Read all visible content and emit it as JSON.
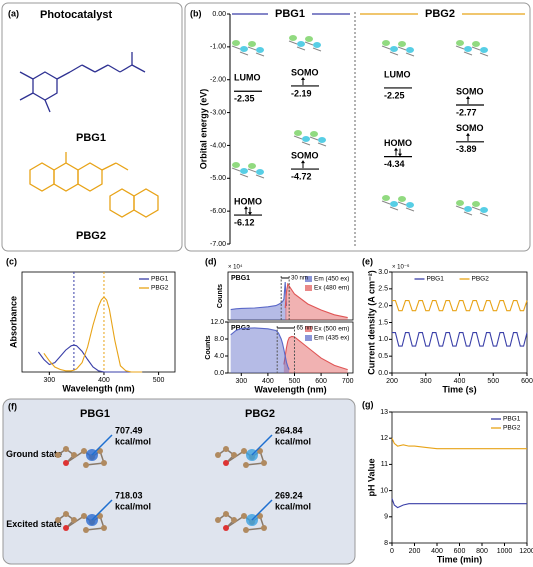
{
  "panel_a": {
    "panel": "(a)",
    "title": "Photocatalyst",
    "compounds": [
      "PBG1",
      "PBG2"
    ]
  },
  "panel_f": {
    "panel": "(f)",
    "columns": [
      "PBG1",
      "PBG2"
    ],
    "rows": [
      {
        "label": "Ground state",
        "energies": [
          {
            "value": "707.49",
            "unit": "kcal/mol"
          },
          {
            "value": "264.84",
            "unit": "kcal/mol"
          }
        ]
      },
      {
        "label": "Excited state",
        "energies": [
          {
            "value": "718.03",
            "unit": "kcal/mol"
          },
          {
            "value": "269.24",
            "unit": "kcal/mol"
          }
        ]
      }
    ]
  },
  "chart_data": [
    {
      "type": "energy_levels",
      "panel": "(b)",
      "ylabel": "Orbital energy (eV)",
      "ylim": [
        -7,
        0
      ],
      "yticks": [
        {
          "value": 0,
          "label": "0.00"
        },
        {
          "value": -1,
          "label": "-1.00"
        },
        {
          "value": -2,
          "label": "-2.00"
        },
        {
          "value": -3,
          "label": "-3.00"
        },
        {
          "value": -4,
          "label": "-4.00"
        },
        {
          "value": -5,
          "label": "-5.00"
        },
        {
          "value": -6,
          "label": "-6.00"
        },
        {
          "value": -7,
          "label": "-7.00"
        }
      ],
      "series": [
        {
          "name": "PBG1",
          "color": "#3a3fa8",
          "labels": [
            "LUMO",
            "SOMO",
            "SOMO",
            "HOMO"
          ],
          "values": [
            -2.35,
            -2.19,
            -4.72,
            -6.12
          ]
        },
        {
          "name": "PBG2",
          "color": "#e8a317",
          "labels": [
            "LUMO",
            "SOMO",
            "HOMO",
            "SOMO"
          ],
          "values": [
            -2.25,
            -2.77,
            -4.34,
            -3.89
          ]
        }
      ]
    },
    {
      "type": "line",
      "panel": "(c)",
      "xlabel": "Wavelength (nm)",
      "ylabel": "Absorbance",
      "legend": "upper right",
      "x": [
        270,
        280,
        290,
        300,
        310,
        320,
        330,
        340,
        345,
        350,
        360,
        370,
        380,
        390,
        395,
        400,
        405,
        410,
        420,
        430,
        440,
        450,
        470,
        500,
        530
      ],
      "xlim": [
        250,
        530
      ],
      "xticks": [
        300,
        400,
        500
      ],
      "ylim": [
        0,
        1.6
      ],
      "peak_lines": [
        345,
        400
      ],
      "series": [
        {
          "name": "PBG1",
          "color": "#3a3fa8",
          "values": [
            null,
            0.32,
            0.2,
            0.12,
            0.15,
            0.25,
            0.35,
            0.42,
            0.43,
            0.42,
            0.33,
            0.2,
            0.08,
            0.02,
            0.01,
            0,
            0,
            0,
            0,
            0,
            0,
            0,
            0,
            null,
            null
          ]
        },
        {
          "name": "PBG2",
          "color": "#e8a317",
          "values": [
            null,
            null,
            0.3,
            0.18,
            0.08,
            0.04,
            0.02,
            0.02,
            0.03,
            0.05,
            0.15,
            0.4,
            0.75,
            1.05,
            1.15,
            1.2,
            1.15,
            1.0,
            0.5,
            0.1,
            0.02,
            0,
            0,
            null,
            null
          ]
        }
      ]
    },
    {
      "type": "area",
      "panel": "(d)",
      "label": "PBG1",
      "ylabel": "Counts",
      "y_multiplier": "× 10⁴",
      "legend": "upper right",
      "annotation": "30 nm",
      "x": [
        260,
        280,
        300,
        350,
        400,
        430,
        440,
        450,
        455,
        460,
        465,
        470,
        475,
        480,
        490,
        500,
        550,
        600,
        650,
        700
      ],
      "xlim": [
        250,
        720
      ],
      "ylim": [
        0,
        12
      ],
      "markers": [
        450,
        480
      ],
      "series": [
        {
          "name": "Em (450 ex)",
          "color": "#5a68c8",
          "values": [
            2.6,
            2.8,
            2.9,
            3.0,
            3.3,
            3.6,
            3.9,
            4.3,
            4.6,
            5.2,
            9.5,
            3.5,
            null,
            null,
            null,
            null,
            null,
            null,
            null,
            null
          ]
        },
        {
          "name": "Ex (480 em)",
          "color": "#e05555",
          "values": [
            null,
            null,
            null,
            null,
            null,
            null,
            null,
            null,
            null,
            null,
            3,
            7,
            9,
            8.5,
            7.5,
            6.5,
            4,
            2.5,
            1.3,
            0.6
          ]
        }
      ]
    },
    {
      "type": "area",
      "label": "PBG2",
      "xlabel": "Wavelength (nm)",
      "ylabel": "Counts",
      "legend": "upper right",
      "annotation": "65 nm",
      "x": [
        260,
        280,
        300,
        350,
        400,
        430,
        440,
        450,
        455,
        460,
        465,
        470,
        475,
        480,
        490,
        500,
        550,
        600,
        650,
        700
      ],
      "xlim": [
        250,
        720
      ],
      "xticks": [
        300,
        400,
        500,
        600,
        700
      ],
      "ylim": [
        0,
        12
      ],
      "markers": [
        435,
        500
      ],
      "yticks": [
        {
          "value": 0,
          "label": "0.0"
        },
        {
          "value": 4,
          "label": "4.0"
        },
        {
          "value": 8,
          "label": "8.0"
        },
        {
          "value": 12,
          "label": "12.0"
        }
      ],
      "series": [
        {
          "name": "Ex (500 em)",
          "color": "#e05555",
          "values": [
            null,
            null,
            null,
            null,
            null,
            null,
            null,
            null,
            null,
            2,
            4,
            6,
            7.5,
            8.3,
            8.6,
            8.5,
            6,
            3.5,
            1.8,
            0.8
          ]
        },
        {
          "name": "Em (435 ex)",
          "color": "#5a68c8",
          "values": [
            9,
            10,
            10.5,
            10.6,
            10.4,
            10,
            9.4,
            8,
            7,
            5.5,
            4,
            2.5,
            1.5,
            0.8,
            null,
            null,
            null,
            null,
            null,
            null
          ]
        }
      ]
    },
    {
      "type": "line",
      "panel": "(e)",
      "xlabel": "Time (s)",
      "ylabel": "Current density (A cm⁻²)",
      "y_multiplier": "× 10⁻⁶",
      "legend": "upper center",
      "x": [
        200,
        210,
        220,
        230,
        240,
        250,
        260,
        270,
        280,
        290,
        300,
        310,
        320,
        330,
        340,
        350,
        360,
        370,
        380,
        390,
        400,
        410,
        420,
        430,
        440,
        450,
        460,
        470,
        480,
        490,
        500,
        510,
        520,
        530,
        540,
        550,
        560,
        570,
        580,
        590,
        600
      ],
      "xlim": [
        200,
        600
      ],
      "xticks": [
        200,
        300,
        400,
        500,
        600
      ],
      "ylim": [
        0,
        3
      ],
      "yticks": [
        {
          "value": 0,
          "label": "0.0"
        },
        {
          "value": 0.5,
          "label": "0.5"
        },
        {
          "value": 1,
          "label": "1.0"
        },
        {
          "value": 1.5,
          "label": "1.5"
        },
        {
          "value": 2,
          "label": "2.0"
        },
        {
          "value": 2.5,
          "label": "2.5"
        },
        {
          "value": 3,
          "label": "3.0"
        }
      ],
      "series": [
        {
          "name": "PBG1",
          "color": "#3a3fa8",
          "values": [
            1.2,
            1.2,
            0.8,
            0.8,
            1.2,
            1.2,
            0.8,
            0.8,
            1.2,
            1.2,
            0.8,
            0.8,
            1.2,
            1.2,
            0.8,
            0.8,
            1.2,
            1.2,
            0.8,
            0.8,
            1.2,
            1.2,
            0.8,
            0.8,
            1.2,
            1.2,
            0.8,
            0.8,
            1.2,
            1.2,
            0.8,
            0.8,
            1.2,
            1.2,
            0.8,
            0.8,
            1.2,
            1.2,
            0.8,
            0.8,
            1.2
          ]
        },
        {
          "name": "PBG2",
          "color": "#e8a317",
          "values": [
            2.15,
            2.15,
            1.85,
            1.85,
            2.15,
            2.15,
            1.85,
            1.85,
            2.15,
            2.15,
            1.85,
            1.85,
            2.15,
            2.15,
            1.85,
            1.85,
            2.15,
            2.15,
            1.85,
            1.85,
            2.15,
            2.15,
            1.85,
            1.85,
            2.15,
            2.15,
            1.85,
            1.85,
            2.15,
            2.15,
            1.85,
            1.85,
            2.15,
            2.15,
            1.85,
            1.85,
            2.15,
            2.15,
            1.85,
            1.85,
            2.15
          ]
        }
      ]
    },
    {
      "type": "line",
      "panel": "(g)",
      "xlabel": "Time (min)",
      "ylabel": "pH Value",
      "legend": "upper right",
      "x": [
        0,
        20,
        50,
        100,
        150,
        200,
        300,
        400,
        600,
        800,
        1000,
        1200
      ],
      "xlim": [
        0,
        1200
      ],
      "xticks": [
        0,
        200,
        400,
        600,
        800,
        1000,
        1200
      ],
      "ylim": [
        8,
        13
      ],
      "yticks": [
        8,
        9,
        10,
        11,
        12,
        13
      ],
      "series": [
        {
          "name": "PBG1",
          "color": "#3a3fa8",
          "values": [
            9.7,
            9.45,
            9.35,
            9.45,
            9.5,
            9.5,
            9.5,
            9.5,
            9.5,
            9.5,
            9.5,
            9.5
          ]
        },
        {
          "name": "PBG2",
          "color": "#e8a317",
          "values": [
            12.0,
            11.8,
            11.7,
            11.75,
            11.7,
            11.7,
            11.65,
            11.6,
            11.6,
            11.6,
            11.6,
            11.6
          ]
        }
      ]
    }
  ]
}
